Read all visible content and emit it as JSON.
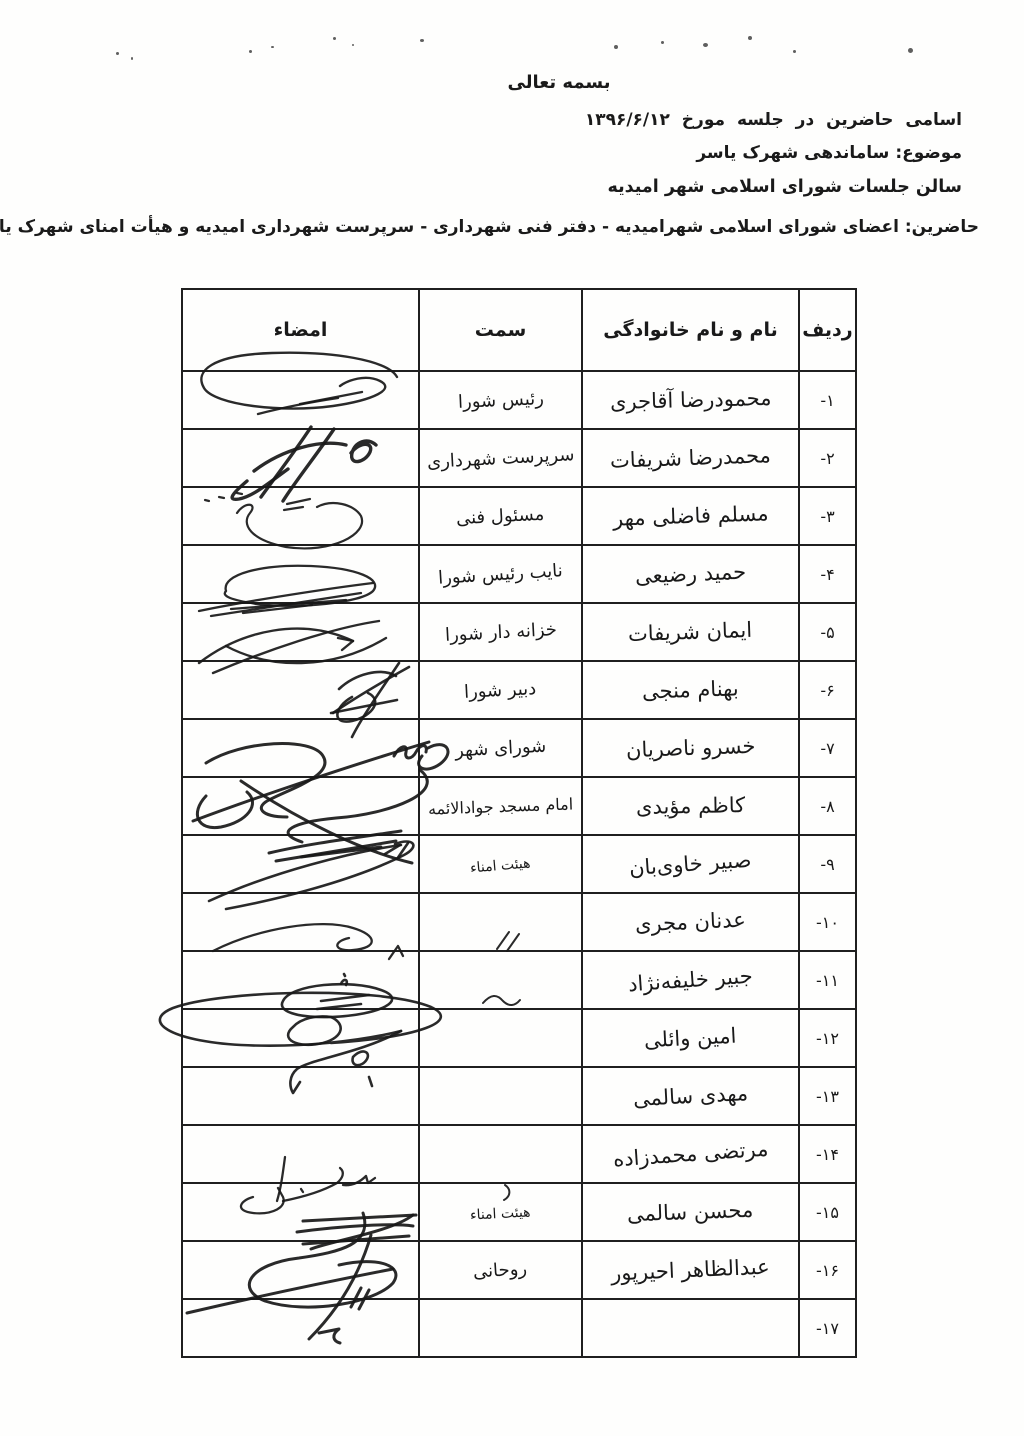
{
  "document": {
    "bismillah": "بسمه تعالی",
    "meeting_line": "اسامی حاضرین در جلسه مورخ ۱۳۹۶/۶/۱۲",
    "subject_label": "موضوع:",
    "subject": "ساماندهی شهرک یاسر",
    "venue": "سالن جلسات شورای اسلامی شهر امیدیه",
    "attendees_label": "حاضرین:",
    "attendees": "اعضای شورای اسلامی شهرامیدیه - دفتر فنی شهرداری - سرپرست شهرداری امیدیه و هیأت امنای شهرک یاسر"
  },
  "table": {
    "headers": {
      "signature": "امضاء",
      "position": "سمت",
      "full_name": "نام و نام خانوادگی",
      "row_no": "ردیف"
    },
    "rows": [
      {
        "no": "-۱",
        "name": "محمودرضا آقاجری",
        "position": "رئیس شورا"
      },
      {
        "no": "-۲",
        "name": "محمدرضا شریفات",
        "position": "سرپرست شهرداری"
      },
      {
        "no": "-۳",
        "name": "مسلم فاضلی مهر",
        "position": "مسئول فنی"
      },
      {
        "no": "-۴",
        "name": "حمید رضیعی",
        "position": "نایب رئیس شورا"
      },
      {
        "no": "-۵",
        "name": "ایمان شریفات",
        "position": "خزانه دار شورا"
      },
      {
        "no": "-۶",
        "name": "بهنام منجی",
        "position": "دبیر شورا"
      },
      {
        "no": "-۷",
        "name": "خسرو ناصریان",
        "position": "شورای شهر"
      },
      {
        "no": "-۸",
        "name": "کاظم مؤیدی",
        "position": "امام مسجد جوادالائمه"
      },
      {
        "no": "-۹",
        "name": "صبیر خاوی‌بان",
        "position": "هیئت امناء"
      },
      {
        "no": "-۱۰",
        "name": "عدنان مجری",
        "position": ""
      },
      {
        "no": "-۱۱",
        "name": "جبیر خلیفه‌نژاد",
        "position": ""
      },
      {
        "no": "-۱۲",
        "name": "امین وائلی",
        "position": ""
      },
      {
        "no": "-۱۳",
        "name": "مهدی سالمی",
        "position": ""
      },
      {
        "no": "-۱۴",
        "name": "مرتضی محمدزاده",
        "position": ""
      },
      {
        "no": "-۱۵",
        "name": "محسن سالمی",
        "position": "هیئت امناء"
      },
      {
        "no": "-۱۶",
        "name": "عبدالظاهر احیرپور",
        "position": "روحانی"
      },
      {
        "no": "-۱۷",
        "name": "",
        "position": ""
      }
    ]
  },
  "ink_color": "#181818",
  "signatures": [
    {
      "name": "signature-row-1",
      "w": 2.4,
      "paths": [
        "M397,377 C388,360 332,351 272,353 C212,355 194,371 204,388 C214,405 282,413 333,406 C374,400 396,389 380,381 C366,374 348,380 340,386",
        "M300,404 L362,392",
        "M258,414 C285,407 318,401 338,398"
      ]
    },
    {
      "name": "signature-row-2",
      "w": 3.4,
      "paths": [
        "M311,427 C296,450 274,479 261,497",
        "M334,429 C318,453 294,483 283,501",
        "M247,481 C233,493 226,501 239,499 C254,496 270,482 288,469",
        "M254,471 C283,449 321,439 346,445",
        "M351,453 C360,441 374,442 370,452 C365,463 349,466 352,453 C355,442 367,437 376,445"
      ]
    },
    {
      "name": "signature-row-3",
      "w": 2.2,
      "paths": [
        "M205,500 l4,1",
        "M219,497 l5,1",
        "M237,493 l5,1",
        "M287,504 l23,-5",
        "M284,510 l19,-3",
        "M237,513 C245,501 258,503 250,513 C241,524 250,540 286,547 C331,554 369,534 361,516 C354,504 332,499 317,507"
      ]
    },
    {
      "name": "signature-row-4",
      "w": 2.3,
      "paths": [
        "M226,591 C221,574 263,564 311,566 C357,568 383,579 373,591 C361,603 299,609 257,604 C231,600 221,596 226,591",
        "M199,611 C252,600 332,588 373,583",
        "M211,616 L361,593",
        "M231,609 L346,600",
        "M243,613 L312,605"
      ]
    },
    {
      "name": "signature-row-5",
      "w": 2.4,
      "paths": [
        "M199,663 C242,630 302,617 353,641",
        "M213,673 C267,650 332,628 379,621",
        "M226,646 C269,669 331,671 386,638",
        "M353,641 l-15,-3 m15,3 l-11,9"
      ]
    },
    {
      "name": "signature-row-6",
      "w": 2.6,
      "paths": [
        "M333,713 C359,695 391,677 409,667",
        "M399,663 C381,690 362,717 352,737",
        "M339,689 C355,674 381,667 396,676",
        "M352,697 C334,707 331,725 352,721 C373,716 383,700 368,693",
        "M331,713 L397,700"
      ]
    },
    {
      "name": "signature-row-7-8",
      "w": 3.0,
      "paths": [
        "M394,756 C400,745 408,744 406,752 C404,760 412,760 416,752 C420,744 428,743 426,752",
        "M428,748 C446,738 456,752 440,764 C426,774 412,768 422,756",
        "M206,763 C242,740 312,737 323,756 C335,775 290,789 271,799 C253,807 261,817 287,817",
        "M193,821 C262,795 362,762 429,742",
        "M420,770 C448,792 390,814 336,818 C294,822 272,832 302,842",
        "M206,796 C190,813 197,831 221,827 C247,822 261,804 247,792",
        "M241,781 C300,821 362,851 412,863",
        "M269,853 C311,843 362,837 401,831",
        "M276,861 L396,841",
        "M301,857 L381,847"
      ]
    },
    {
      "name": "signature-row-9",
      "w": 2.6,
      "paths": [
        "M209,901 C272,872 352,852 401,845",
        "M395,844 C413,837 421,846 404,855 C361,877 291,897 226,909",
        "M385,854 l15,-9 m-3,14 l11,-16"
      ]
    },
    {
      "name": "signature-row-10",
      "w": 2.3,
      "paths": [
        "M213,951 C259,928 321,918 353,928 C377,935 379,948 353,950 C335,952 331,942 349,938",
        "M389,959 l9,-13 l5,10"
      ]
    },
    {
      "name": "ditto-mark-row-10",
      "w": 2.0,
      "paths": [
        "M497,949 l12,-17",
        "M507,951 l12,-17"
      ]
    },
    {
      "name": "signature-row-11",
      "w": 2.6,
      "paths": [
        "M283,1001 C291,984 351,979 381,990 C409,1000 381,1015 331,1017 C296,1018 277,1011 283,1001",
        "M321,1001 L369,995",
        "M317,1009 L361,1004",
        "M341,984 c2,-6 8,-5 5,1 m-2,-11 l1,2",
        "M331,1017 C345,1023 345,1037 323,1043 C297,1049 279,1039 293,1027 C301,1018 317,1015 331,1017",
        "M331,1043 C421,1037 461,1021 431,1007 C381,986 221,990 173,1008 C141,1021 169,1041 241,1045 C301,1048 361,1041 401,1031",
        "M401,1031 C361,1053 311,1059 297,1069 C289,1076 289,1086 293,1093 l7,-11",
        "M353,1057 c8,-9 18,-6 14,2 c-5,9 -17,8 -14,-2",
        "M369,1077 l3,9"
      ]
    },
    {
      "name": "ditto-mark-row-11",
      "w": 2.0,
      "paths": [
        "M483,1003 c8,-9 14,-9 20,-2 c6,6 12,5 17,-1"
      ]
    },
    {
      "name": "signature-row-14",
      "w": 2.3,
      "paths": [
        "M285,1157 C283,1172 281,1188 277,1201",
        "M253,1197 C239,1201 235,1211 253,1213 C273,1215 287,1207 283,1197 l-5,-9",
        "M283,1201 C303,1197 323,1191 337,1183 c6,-5 8,-11 3,-15",
        "M343,1185 c9,1 17,-3 23,-9 l2,7 l7,-5",
        "M301,1189 l2,3"
      ]
    },
    {
      "name": "ditto-mark-row-14",
      "w": 2.0,
      "paths": [
        "M505,1185 c6,4 6,11 -1,15"
      ]
    },
    {
      "name": "signature-row-15-16",
      "w": 3.0,
      "paths": [
        "M303,1221 L416,1215",
        "M297,1232 C341,1226 391,1223 413,1226",
        "M303,1244 L409,1236",
        "M413,1215 C391,1232 331,1241 311,1249",
        "M363,1213 C373,1244 341,1252 299,1258 C249,1264 235,1289 265,1301 C307,1315 375,1303 393,1283 C405,1266 379,1256 339,1265",
        "M371,1235 C357,1283 331,1317 309,1339",
        "M187,1313 C251,1298 331,1281 393,1269",
        "M351,1307 l10,-19",
        "M359,1309 l10,-19",
        "M319,1333 l20,-4 c-8,6 -6,12 1,14"
      ]
    }
  ]
}
